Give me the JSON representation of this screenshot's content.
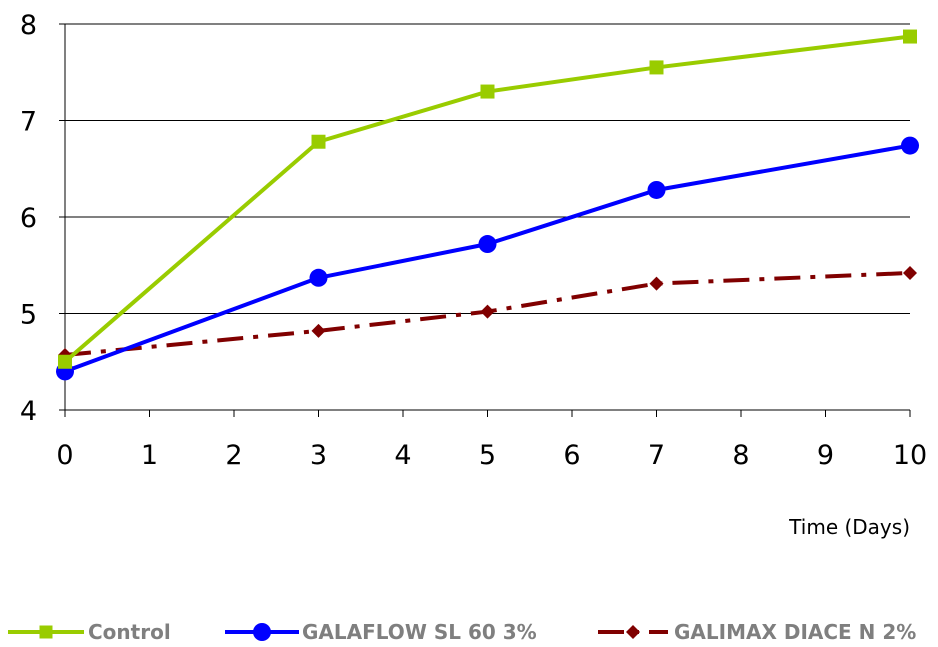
{
  "chart_data": {
    "type": "line",
    "title": "",
    "xlabel": "Time (Days)",
    "ylabel": "",
    "xlim": [
      0,
      10
    ],
    "ylim": [
      4,
      8
    ],
    "x_ticks": [
      0,
      1,
      2,
      3,
      4,
      5,
      6,
      7,
      8,
      9,
      10
    ],
    "y_ticks": [
      4,
      5,
      6,
      7,
      8
    ],
    "grid": "horizontal",
    "legend_position": "bottom",
    "series": [
      {
        "name": "Control",
        "color": "#99cc00",
        "marker": "square",
        "dash": "solid",
        "x": [
          0,
          3,
          5,
          7,
          10
        ],
        "y": [
          4.5,
          6.78,
          7.3,
          7.55,
          7.87
        ]
      },
      {
        "name": "GALAFLOW SL 60 3%",
        "color": "#0000ff",
        "marker": "circle",
        "dash": "solid",
        "x": [
          0,
          3,
          5,
          7,
          10
        ],
        "y": [
          4.4,
          5.37,
          5.72,
          6.28,
          6.74
        ]
      },
      {
        "name": "GALIMAX DIACE N 2%",
        "color": "#800000",
        "marker": "diamond",
        "dash": "dashdot",
        "x": [
          0,
          3,
          5,
          7,
          10
        ],
        "y": [
          4.57,
          4.82,
          5.02,
          5.31,
          5.42
        ]
      }
    ]
  }
}
